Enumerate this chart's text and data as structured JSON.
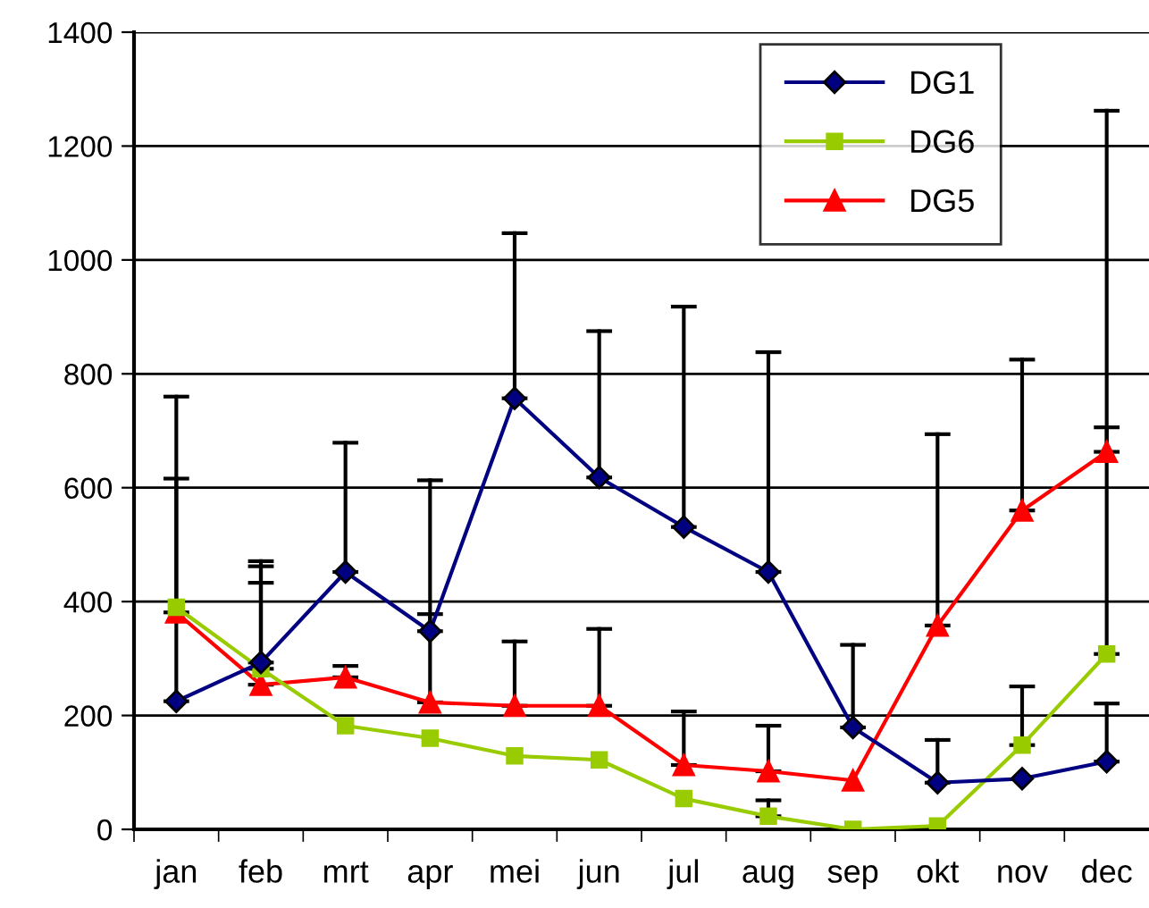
{
  "chart_data": {
    "type": "line",
    "categories": [
      "jan",
      "feb",
      "mrt",
      "apr",
      "mei",
      "jun",
      "jul",
      "aug",
      "sep",
      "okt",
      "nov",
      "dec"
    ],
    "series": [
      {
        "name": "DG1",
        "color": "#000080",
        "marker": "diamond",
        "values": [
          225,
          293,
          452,
          348,
          757,
          618,
          531,
          452,
          179,
          82,
          89,
          119
        ],
        "errors": [
          [
            225,
            760
          ],
          [
            293,
            471
          ],
          [
            452,
            679
          ],
          [
            348,
            613
          ],
          [
            757,
            1047
          ],
          [
            618,
            875
          ],
          [
            531,
            918
          ],
          [
            452,
            838
          ],
          [
            179,
            324
          ],
          [
            82,
            157
          ],
          null,
          [
            119,
            221
          ]
        ]
      },
      {
        "name": "DG6",
        "color": "#99cc00",
        "marker": "square",
        "values": [
          390,
          282,
          182,
          160,
          129,
          122,
          54,
          23,
          0,
          6,
          148,
          308
        ],
        "errors": [
          null,
          [
            282,
            433
          ],
          null,
          null,
          null,
          null,
          null,
          [
            23,
            51
          ],
          null,
          null,
          [
            148,
            251
          ],
          [
            308,
            1262
          ]
        ]
      },
      {
        "name": "DG5",
        "color": "#ff0000",
        "marker": "triangle",
        "values": [
          381,
          254,
          267,
          223,
          217,
          217,
          113,
          102,
          86,
          358,
          560,
          663
        ],
        "errors": [
          [
            381,
            616
          ],
          [
            254,
            462
          ],
          [
            267,
            287
          ],
          [
            223,
            378
          ],
          [
            217,
            330
          ],
          [
            217,
            352
          ],
          [
            113,
            207
          ],
          [
            102,
            182
          ],
          null,
          [
            358,
            694
          ],
          [
            560,
            825
          ],
          [
            663,
            706
          ]
        ]
      }
    ],
    "ylim": [
      0,
      1400
    ],
    "yticks": [
      0,
      200,
      400,
      600,
      800,
      1000,
      1200,
      1400
    ],
    "grid": "y",
    "legend": "top right",
    "line_style": "solid"
  }
}
